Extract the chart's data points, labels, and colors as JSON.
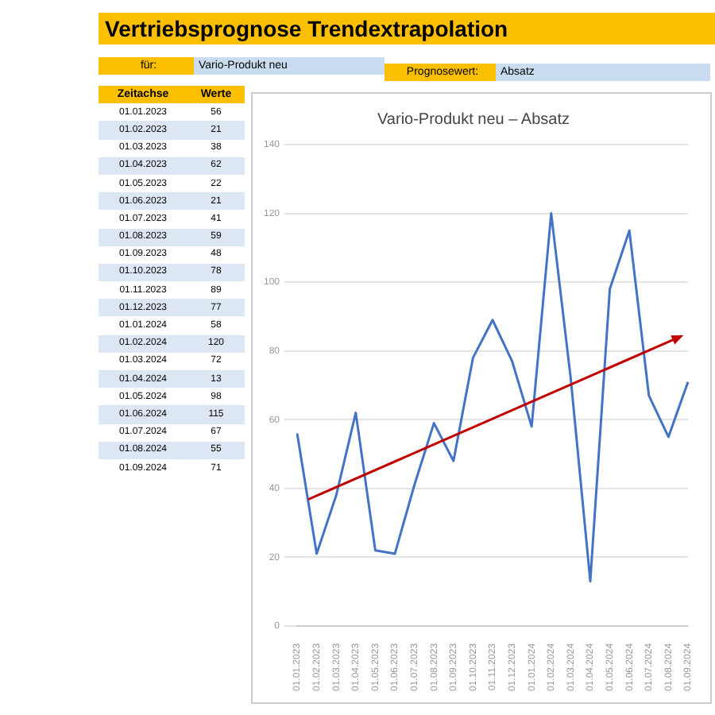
{
  "chart_data": {
    "type": "line",
    "title": "Vertriebsprognose Trendextrapolation",
    "subtitle": "Vario-Produkt neu – Absatz",
    "annotations": [
      "für:",
      "Vario-Produkt neu",
      "Prognosewert:",
      "Absatz",
      "Zeitachse",
      "Werte",
      "01.01.2023",
      "56",
      "01.02.2023",
      "21",
      "01.03.2023",
      "38",
      "01.04.2023",
      "62",
      "01.05.2023",
      "22",
      "01.06.2023",
      "21",
      "01.07.2023",
      "41",
      "01.08.2023",
      "59",
      "01.09.2023",
      "48",
      "01.10.2023",
      "78",
      "01.11.2023",
      "89",
      "01.12.2023",
      "77",
      "01.01.2024",
      "58",
      "01.02.2024",
      "120",
      "01.03.2024",
      "72",
      "01.04.2024",
      "13",
      "01.05.2024",
      "98",
      "01.06.2024",
      "115",
      "01.07.2024",
      "67",
      "01.08.2024",
      "55",
      "01.09.2024",
      "71"
    ],
    "categories": [
      "01.01.2023",
      "01.02.2023",
      "01.03.2023",
      "01.04.2023",
      "01.05.2023",
      "01.06.2023",
      "01.07.2023",
      "01.08.2023",
      "01.09.2023",
      "01.10.2023",
      "01.11.2023",
      "01.12.2023",
      "01.01.2024",
      "01.02.2024",
      "01.03.2024",
      "01.04.2024",
      "01.05.2024",
      "01.06.2024",
      "01.07.2024",
      "01.08.2024",
      "01.09.2024"
    ],
    "series": [
      {
        "color": "#4472c4",
        "values": [
          56,
          21,
          38,
          62,
          22,
          21,
          41,
          59,
          48,
          78,
          89,
          77,
          58,
          120,
          72,
          13,
          98,
          115,
          67,
          55,
          71
        ]
      }
    ],
    "ylim": [
      0,
      140
    ],
    "yticks": [
      0,
      20,
      40,
      60,
      80,
      100,
      120,
      140
    ],
    "grid": "y",
    "legend": false,
    "marker": "none",
    "line_style": "solid"
  }
}
